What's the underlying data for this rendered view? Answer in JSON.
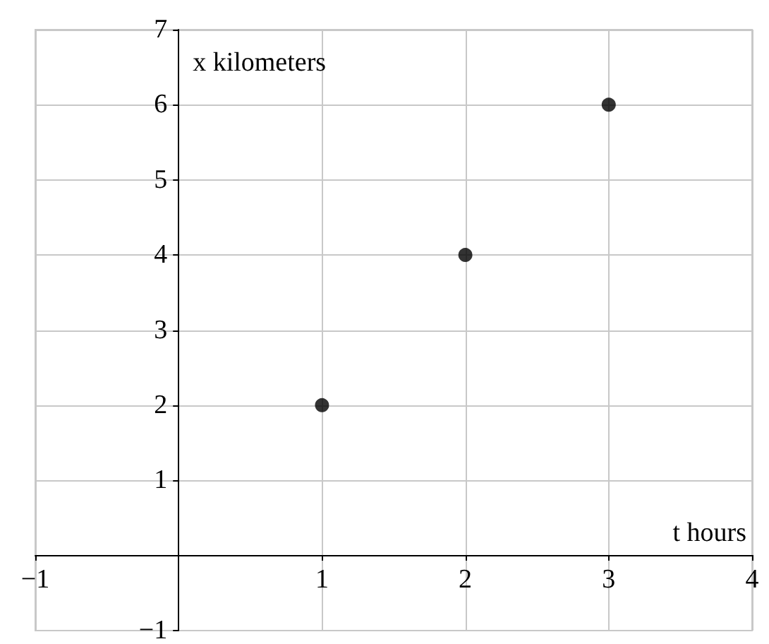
{
  "chart_data": {
    "type": "scatter",
    "xlabel": "t hours",
    "ylabel": "x kilometers",
    "x": [
      1,
      2,
      3
    ],
    "values": [
      2,
      4,
      6
    ],
    "color": "#000000",
    "marker": "circle",
    "xlim": [
      -1,
      4
    ],
    "ylim": [
      -1,
      7
    ],
    "xticks": [
      -1,
      {
        "value": 0,
        "label": null
      },
      1,
      2,
      3,
      4
    ],
    "yticks": [
      -1,
      {
        "value": 0,
        "label": null
      },
      1,
      2,
      3,
      4,
      5,
      6,
      7
    ],
    "grid": true
  }
}
